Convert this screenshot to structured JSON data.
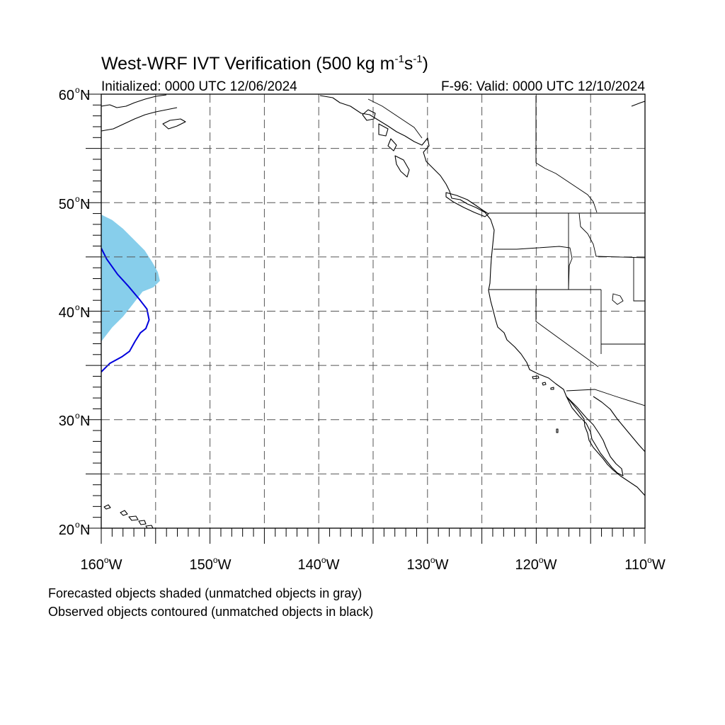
{
  "title": {
    "prefix": "West-WRF IVT Verification (500 kg m",
    "exp1": "-1",
    "mid": "s",
    "exp2": "-1",
    "suffix": ")"
  },
  "init_label": "Initialized: 0000 UTC 12/06/2024",
  "valid_label": "F-96: Valid: 0000 UTC 12/10/2024",
  "lat_labels": [
    {
      "deg": "60",
      "hemi": "N"
    },
    {
      "deg": "50",
      "hemi": "N"
    },
    {
      "deg": "40",
      "hemi": "N"
    },
    {
      "deg": "30",
      "hemi": "N"
    },
    {
      "deg": "20",
      "hemi": "N"
    }
  ],
  "lon_labels": [
    {
      "deg": "160",
      "hemi": "W"
    },
    {
      "deg": "150",
      "hemi": "W"
    },
    {
      "deg": "140",
      "hemi": "W"
    },
    {
      "deg": "130",
      "hemi": "W"
    },
    {
      "deg": "120",
      "hemi": "W"
    },
    {
      "deg": "110",
      "hemi": "W"
    }
  ],
  "legend": {
    "line1": "Forecasted objects shaded (unmatched objects in gray)",
    "line2": "Observed objects contoured (unmatched objects in black)"
  },
  "colors": {
    "forecast_matched": "#87ceeb",
    "observed_matched": "#0000dd",
    "coast": "#000000",
    "grid": "#555555"
  },
  "map": {
    "lon_range": [
      -160,
      -110
    ],
    "lat_range": [
      20,
      60
    ],
    "grid_spacing_deg": 5,
    "grid_style": "dashed"
  },
  "forecast_object": {
    "status": "matched",
    "outline": [
      [
        -160,
        48.9
      ],
      [
        -159,
        48.4
      ],
      [
        -158,
        47.6
      ],
      [
        -157,
        46.6
      ],
      [
        -156,
        45.6
      ],
      [
        -155.3,
        44.5
      ],
      [
        -154.8,
        43.6
      ],
      [
        -154.6,
        42.8
      ],
      [
        -155.2,
        42.2
      ],
      [
        -156.2,
        41.8
      ],
      [
        -157.2,
        40.5
      ],
      [
        -158,
        39.5
      ],
      [
        -159,
        38.5
      ],
      [
        -160,
        37.2
      ]
    ]
  },
  "observed_object": {
    "status": "matched",
    "outline": [
      [
        -160,
        45.8
      ],
      [
        -159.5,
        44.8
      ],
      [
        -158.5,
        43.4
      ],
      [
        -157.5,
        42.3
      ],
      [
        -156.5,
        41.1
      ],
      [
        -155.8,
        40.2
      ],
      [
        -155.6,
        39.2
      ],
      [
        -155.9,
        38.4
      ],
      [
        -156.4,
        38.0
      ],
      [
        -156.9,
        37.2
      ],
      [
        -157.4,
        36.3
      ],
      [
        -158.1,
        35.8
      ],
      [
        -159.2,
        35.2
      ],
      [
        -160,
        34.4
      ]
    ]
  }
}
